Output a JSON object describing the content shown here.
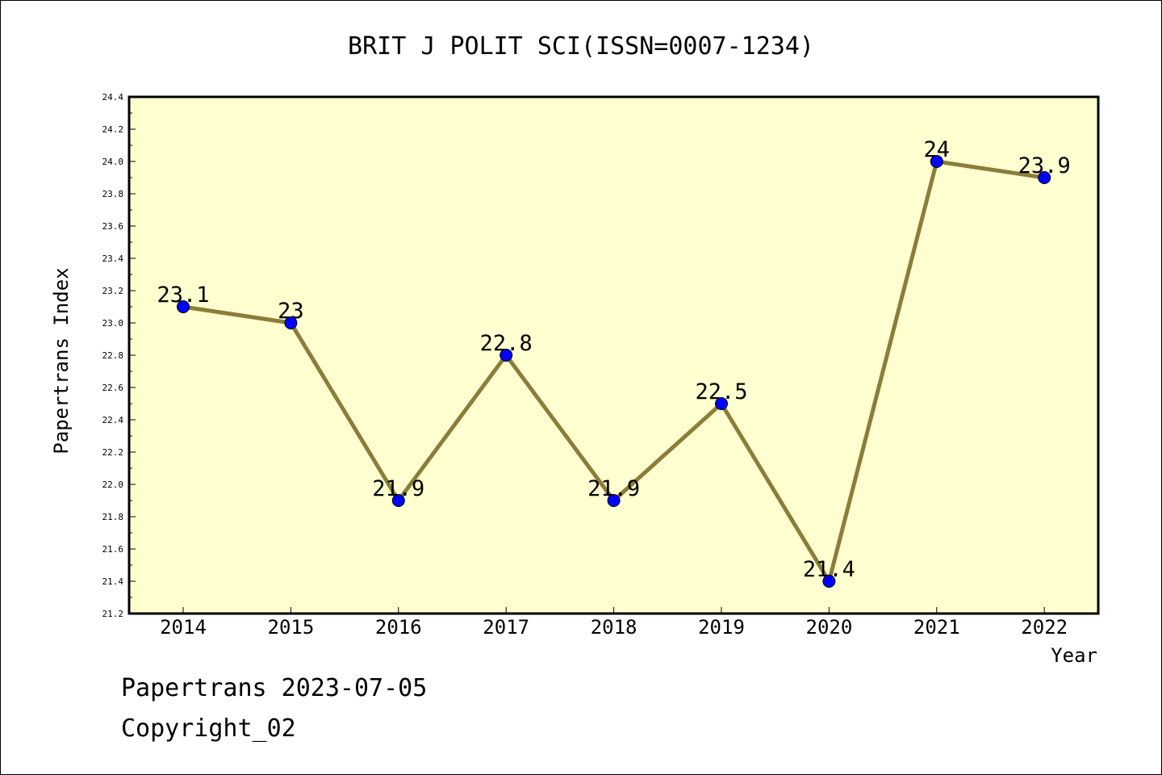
{
  "chart_data": {
    "type": "line",
    "title": "BRIT J POLIT SCI(ISSN=0007-1234)",
    "xlabel": "Year",
    "ylabel": "Papertrans Index",
    "x": [
      "2014",
      "2015",
      "2016",
      "2017",
      "2018",
      "2019",
      "2020",
      "2021",
      "2022"
    ],
    "values": [
      23.1,
      23.0,
      21.9,
      22.8,
      21.9,
      22.5,
      21.4,
      24.0,
      23.9
    ],
    "data_labels": [
      "23.1",
      "23",
      "21.9",
      "22.8",
      "21.9",
      "22.5",
      "21.4",
      "24",
      "23.9"
    ],
    "ylim": [
      21.2,
      24.4
    ],
    "yticks": [
      "21.2",
      "21.4",
      "21.6",
      "21.8",
      "22.0",
      "22.2",
      "22.4",
      "22.6",
      "22.8",
      "23.0",
      "23.2",
      "23.4",
      "23.6",
      "23.8",
      "24.0",
      "24.2",
      "24.4"
    ],
    "grid": false,
    "legend": "none",
    "colors": {
      "plot_background": "#ffffd0",
      "line": "#8b7d3a",
      "marker": "#0000ff"
    }
  },
  "footer": {
    "line1": "Papertrans 2023-07-05",
    "line2": "Copyright_02"
  }
}
